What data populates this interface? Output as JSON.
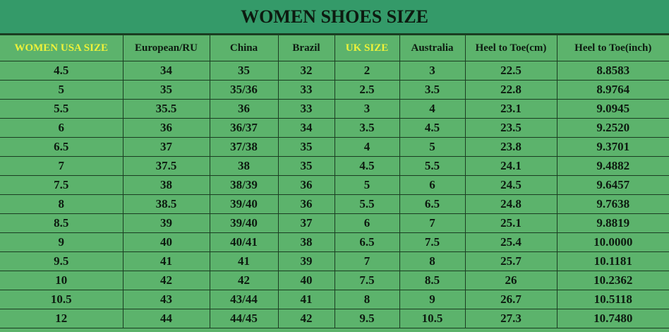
{
  "title": "WOMEN SHOES SIZE",
  "colors": {
    "title_bg": "#349a69",
    "cell_bg": "#5cb36c",
    "highlight_header_text": "#eef23a",
    "text": "#0d1a10"
  },
  "columns": [
    "WOMEN USA SIZE",
    "European/RU",
    "China",
    "Brazil",
    "UK SIZE",
    "Australia",
    "Heel to Toe(cm)",
    "Heel to Toe(inch)"
  ],
  "highlighted_columns": [
    0,
    4
  ],
  "rows": [
    [
      "4.5",
      "34",
      "35",
      "32",
      "2",
      "3",
      "22.5",
      "8.8583"
    ],
    [
      "5",
      "35",
      "35/36",
      "33",
      "2.5",
      "3.5",
      "22.8",
      "8.9764"
    ],
    [
      "5.5",
      "35.5",
      "36",
      "33",
      "3",
      "4",
      "23.1",
      "9.0945"
    ],
    [
      "6",
      "36",
      "36/37",
      "34",
      "3.5",
      "4.5",
      "23.5",
      "9.2520"
    ],
    [
      "6.5",
      "37",
      "37/38",
      "35",
      "4",
      "5",
      "23.8",
      "9.3701"
    ],
    [
      "7",
      "37.5",
      "38",
      "35",
      "4.5",
      "5.5",
      "24.1",
      "9.4882"
    ],
    [
      "7.5",
      "38",
      "38/39",
      "36",
      "5",
      "6",
      "24.5",
      "9.6457"
    ],
    [
      "8",
      "38.5",
      "39/40",
      "36",
      "5.5",
      "6.5",
      "24.8",
      "9.7638"
    ],
    [
      "8.5",
      "39",
      "39/40",
      "37",
      "6",
      "7",
      "25.1",
      "9.8819"
    ],
    [
      "9",
      "40",
      "40/41",
      "38",
      "6.5",
      "7.5",
      "25.4",
      "10.0000"
    ],
    [
      "9.5",
      "41",
      "41",
      "39",
      "7",
      "8",
      "25.7",
      "10.1181"
    ],
    [
      "10",
      "42",
      "42",
      "40",
      "7.5",
      "8.5",
      "26",
      "10.2362"
    ],
    [
      "10.5",
      "43",
      "43/44",
      "41",
      "8",
      "9",
      "26.7",
      "10.5118"
    ],
    [
      "12",
      "44",
      "44/45",
      "42",
      "9.5",
      "10.5",
      "27.3",
      "10.7480"
    ]
  ]
}
